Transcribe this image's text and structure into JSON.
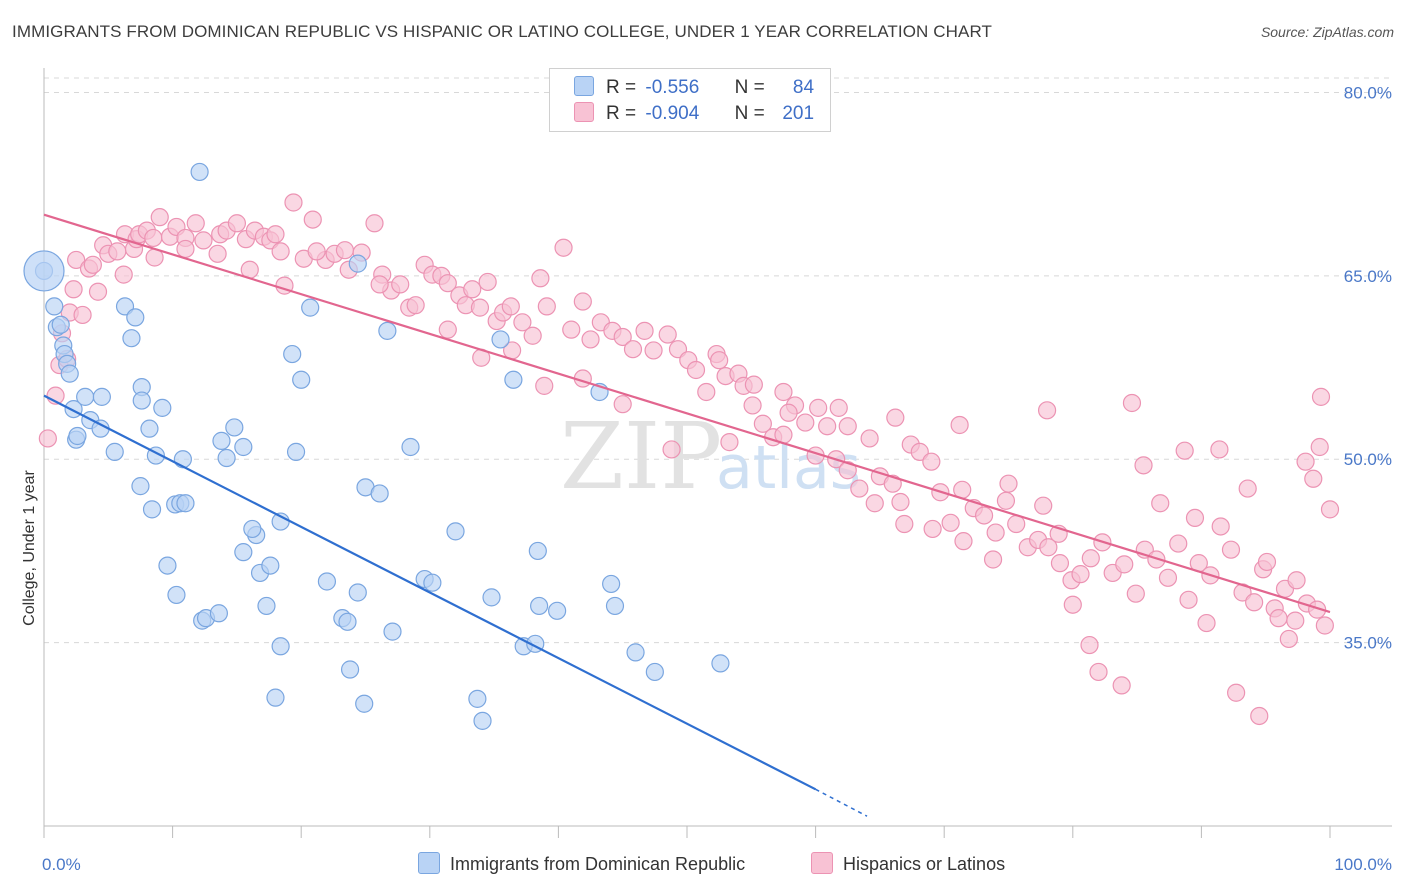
{
  "title": "IMMIGRANTS FROM DOMINICAN REPUBLIC VS HISPANIC OR LATINO COLLEGE, UNDER 1 YEAR CORRELATION CHART",
  "source": "Source: ZipAtlas.com",
  "watermark": {
    "zip": "ZIP",
    "atlas": "atlas"
  },
  "legend": {
    "r_label": "R =",
    "n_label": "N =",
    "blue": {
      "r": "-0.556",
      "n": "84"
    },
    "pink": {
      "r": "-0.904",
      "n": "201"
    }
  },
  "bottom_legend": {
    "blue": "Immigrants from Dominican Republic",
    "pink": "Hispanics or Latinos"
  },
  "colors": {
    "blue_fill": "#b9d3f5",
    "blue_stroke": "#7aa6e0",
    "blue_line": "#2f6fd0",
    "pink_fill": "#f8c2d4",
    "pink_stroke": "#ec93b3",
    "pink_line": "#e2668f",
    "axis_text": "#4a78c8",
    "grid": "#d8d8d8"
  },
  "chart_data": {
    "type": "scatter",
    "title": "IMMIGRANTS FROM DOMINICAN REPUBLIC VS HISPANIC OR LATINO COLLEGE, UNDER 1 YEAR CORRELATION CHART",
    "xlabel": "",
    "ylabel": "College, Under 1 year",
    "xlim": [
      0,
      100
    ],
    "ylim": [
      20,
      82
    ],
    "x_tick_labels": [
      "0.0%",
      "100.0%"
    ],
    "y_ticks": [
      35,
      50,
      65,
      80
    ],
    "y_tick_labels": [
      "35.0%",
      "50.0%",
      "65.0%",
      "80.0%"
    ],
    "grid": true,
    "legend_position": "top-center",
    "series": [
      {
        "name": "Immigrants from Dominican Republic",
        "color": "#b9d3f5",
        "r": -0.556,
        "n": 84,
        "trend": {
          "x": [
            0,
            60,
            64
          ],
          "y": [
            55.2,
            23.0,
            20.8
          ]
        },
        "points": [
          [
            0,
            65.4
          ],
          [
            0.8,
            62.5
          ],
          [
            1.0,
            60.8
          ],
          [
            1.3,
            61.0
          ],
          [
            1.5,
            59.3
          ],
          [
            1.6,
            58.6
          ],
          [
            1.8,
            57.8
          ],
          [
            2.0,
            57.0
          ],
          [
            2.3,
            54.1
          ],
          [
            2.5,
            51.6
          ],
          [
            2.6,
            51.9
          ],
          [
            3.2,
            55.1
          ],
          [
            3.6,
            53.2
          ],
          [
            4.5,
            55.1
          ],
          [
            4.4,
            52.5
          ],
          [
            5.5,
            50.6
          ],
          [
            6.3,
            62.5
          ],
          [
            6.8,
            59.9
          ],
          [
            7.1,
            61.6
          ],
          [
            7.6,
            55.9
          ],
          [
            7.6,
            54.8
          ],
          [
            8.2,
            52.5
          ],
          [
            7.5,
            47.8
          ],
          [
            8.4,
            45.9
          ],
          [
            8.7,
            50.3
          ],
          [
            9.2,
            54.2
          ],
          [
            10.2,
            46.3
          ],
          [
            10.6,
            46.4
          ],
          [
            10.8,
            50.0
          ],
          [
            11.0,
            46.4
          ],
          [
            12.1,
            73.5
          ],
          [
            9.6,
            41.3
          ],
          [
            10.3,
            38.9
          ],
          [
            12.3,
            36.8
          ],
          [
            12.6,
            37.0
          ],
          [
            13.6,
            37.4
          ],
          [
            13.8,
            51.5
          ],
          [
            14.8,
            52.6
          ],
          [
            14.2,
            50.1
          ],
          [
            15.5,
            51.0
          ],
          [
            15.5,
            42.4
          ],
          [
            16.5,
            43.8
          ],
          [
            16.2,
            44.3
          ],
          [
            17.3,
            38.0
          ],
          [
            16.8,
            40.7
          ],
          [
            17.6,
            41.3
          ],
          [
            18.4,
            44.9
          ],
          [
            18.0,
            30.5
          ],
          [
            18.4,
            34.7
          ],
          [
            19.6,
            50.6
          ],
          [
            19.3,
            58.6
          ],
          [
            20.0,
            56.5
          ],
          [
            20.7,
            62.4
          ],
          [
            22.0,
            40.0
          ],
          [
            23.2,
            37.0
          ],
          [
            23.6,
            36.7
          ],
          [
            23.8,
            32.8
          ],
          [
            24.4,
            39.1
          ],
          [
            24.9,
            30.0
          ],
          [
            25.0,
            47.7
          ],
          [
            26.1,
            47.2
          ],
          [
            26.7,
            60.5
          ],
          [
            27.1,
            35.9
          ],
          [
            28.5,
            51.0
          ],
          [
            29.6,
            40.2
          ],
          [
            30.2,
            39.9
          ],
          [
            32.0,
            44.1
          ],
          [
            33.7,
            30.4
          ],
          [
            34.1,
            28.6
          ],
          [
            34.8,
            38.7
          ],
          [
            35.5,
            59.8
          ],
          [
            36.5,
            56.5
          ],
          [
            37.3,
            34.7
          ],
          [
            38.2,
            34.9
          ],
          [
            38.4,
            42.5
          ],
          [
            38.5,
            38.0
          ],
          [
            39.9,
            37.6
          ],
          [
            43.2,
            55.5
          ],
          [
            44.1,
            39.8
          ],
          [
            44.4,
            38.0
          ],
          [
            46.0,
            34.2
          ],
          [
            47.5,
            32.6
          ],
          [
            52.6,
            33.3
          ],
          [
            24.4,
            66.0
          ]
        ]
      },
      {
        "name": "Hispanics or Latinos",
        "color": "#f8c2d4",
        "r": -0.904,
        "n": 201,
        "trend": {
          "x": [
            0,
            100
          ],
          "y": [
            70.0,
            37.5
          ]
        },
        "points": [
          [
            0.3,
            51.7
          ],
          [
            0.9,
            55.2
          ],
          [
            1.2,
            57.7
          ],
          [
            1.4,
            60.3
          ],
          [
            2.0,
            62.0
          ],
          [
            2.3,
            63.9
          ],
          [
            2.5,
            66.3
          ],
          [
            3.5,
            65.6
          ],
          [
            3.8,
            65.9
          ],
          [
            4.6,
            67.5
          ],
          [
            5.0,
            66.8
          ],
          [
            5.7,
            67.0
          ],
          [
            6.3,
            68.4
          ],
          [
            7.0,
            67.2
          ],
          [
            7.2,
            68.0
          ],
          [
            7.4,
            68.4
          ],
          [
            8.0,
            68.7
          ],
          [
            8.5,
            68.1
          ],
          [
            9.0,
            69.8
          ],
          [
            9.8,
            68.2
          ],
          [
            10.3,
            69.0
          ],
          [
            11.0,
            68.1
          ],
          [
            11.8,
            69.3
          ],
          [
            12.4,
            67.9
          ],
          [
            13.7,
            68.4
          ],
          [
            14.2,
            68.7
          ],
          [
            15.0,
            69.3
          ],
          [
            15.7,
            68.0
          ],
          [
            16.4,
            68.7
          ],
          [
            17.1,
            68.2
          ],
          [
            17.6,
            67.9
          ],
          [
            18.0,
            68.4
          ],
          [
            18.4,
            67.0
          ],
          [
            19.4,
            71.0
          ],
          [
            20.2,
            66.4
          ],
          [
            20.9,
            69.6
          ],
          [
            21.9,
            66.3
          ],
          [
            22.6,
            66.8
          ],
          [
            23.4,
            67.1
          ],
          [
            24.7,
            66.9
          ],
          [
            25.7,
            69.3
          ],
          [
            26.3,
            65.1
          ],
          [
            27.0,
            63.8
          ],
          [
            27.7,
            64.3
          ],
          [
            28.4,
            62.4
          ],
          [
            29.6,
            65.9
          ],
          [
            30.2,
            65.1
          ],
          [
            30.9,
            65.0
          ],
          [
            31.4,
            64.4
          ],
          [
            32.3,
            63.4
          ],
          [
            32.8,
            62.6
          ],
          [
            33.3,
            63.9
          ],
          [
            33.9,
            62.4
          ],
          [
            34.5,
            64.5
          ],
          [
            35.2,
            61.3
          ],
          [
            35.7,
            62.0
          ],
          [
            36.3,
            62.5
          ],
          [
            37.2,
            61.2
          ],
          [
            38.0,
            60.1
          ],
          [
            38.6,
            64.8
          ],
          [
            39.1,
            62.5
          ],
          [
            40.4,
            67.3
          ],
          [
            41.0,
            60.6
          ],
          [
            41.9,
            62.9
          ],
          [
            42.5,
            59.8
          ],
          [
            43.3,
            61.2
          ],
          [
            44.2,
            60.5
          ],
          [
            45.0,
            60.0
          ],
          [
            45.8,
            59.0
          ],
          [
            46.7,
            60.5
          ],
          [
            47.4,
            58.9
          ],
          [
            48.5,
            60.2
          ],
          [
            49.3,
            59.0
          ],
          [
            50.1,
            58.1
          ],
          [
            50.7,
            57.3
          ],
          [
            51.5,
            55.5
          ],
          [
            52.3,
            58.6
          ],
          [
            53.0,
            56.8
          ],
          [
            54.0,
            57.0
          ],
          [
            54.4,
            56.0
          ],
          [
            55.1,
            54.4
          ],
          [
            55.9,
            52.9
          ],
          [
            56.7,
            51.8
          ],
          [
            57.5,
            55.5
          ],
          [
            58.4,
            54.4
          ],
          [
            59.2,
            53.0
          ],
          [
            60.0,
            50.3
          ],
          [
            60.9,
            52.7
          ],
          [
            61.6,
            50.0
          ],
          [
            62.5,
            49.1
          ],
          [
            63.4,
            47.6
          ],
          [
            64.2,
            51.7
          ],
          [
            65.0,
            48.6
          ],
          [
            66.0,
            48.0
          ],
          [
            66.6,
            46.5
          ],
          [
            67.4,
            51.2
          ],
          [
            68.1,
            50.6
          ],
          [
            69.0,
            49.8
          ],
          [
            69.7,
            47.3
          ],
          [
            70.5,
            44.8
          ],
          [
            71.4,
            47.5
          ],
          [
            72.3,
            46.0
          ],
          [
            73.1,
            45.4
          ],
          [
            74.0,
            44.0
          ],
          [
            74.8,
            46.6
          ],
          [
            75.6,
            44.7
          ],
          [
            76.5,
            42.8
          ],
          [
            77.3,
            43.4
          ],
          [
            78.1,
            42.8
          ],
          [
            79.0,
            41.5
          ],
          [
            79.9,
            40.1
          ],
          [
            80.6,
            40.6
          ],
          [
            81.4,
            41.9
          ],
          [
            82.3,
            43.2
          ],
          [
            83.1,
            40.7
          ],
          [
            84.0,
            41.4
          ],
          [
            84.9,
            39.0
          ],
          [
            85.6,
            42.6
          ],
          [
            86.5,
            41.8
          ],
          [
            87.4,
            40.3
          ],
          [
            88.2,
            43.1
          ],
          [
            89.0,
            38.5
          ],
          [
            89.8,
            41.5
          ],
          [
            90.7,
            40.5
          ],
          [
            91.5,
            44.5
          ],
          [
            92.3,
            42.6
          ],
          [
            93.2,
            39.1
          ],
          [
            94.1,
            38.3
          ],
          [
            94.8,
            41.0
          ],
          [
            95.7,
            37.8
          ],
          [
            96.5,
            39.4
          ],
          [
            97.3,
            36.8
          ],
          [
            98.2,
            38.2
          ],
          [
            99.0,
            37.7
          ],
          [
            52.5,
            58.1
          ],
          [
            55.2,
            56.1
          ],
          [
            57.9,
            53.8
          ],
          [
            60.2,
            54.2
          ],
          [
            62.5,
            52.7
          ],
          [
            64.6,
            46.4
          ],
          [
            66.9,
            44.7
          ],
          [
            69.1,
            44.3
          ],
          [
            71.5,
            43.3
          ],
          [
            73.8,
            41.8
          ],
          [
            75.0,
            48.0
          ],
          [
            77.7,
            46.2
          ],
          [
            78.9,
            43.9
          ],
          [
            80.0,
            38.1
          ],
          [
            81.3,
            34.8
          ],
          [
            82.0,
            32.6
          ],
          [
            83.8,
            31.5
          ],
          [
            85.5,
            49.5
          ],
          [
            86.8,
            46.4
          ],
          [
            88.7,
            50.7
          ],
          [
            89.5,
            45.2
          ],
          [
            90.4,
            36.6
          ],
          [
            91.4,
            50.8
          ],
          [
            92.7,
            30.9
          ],
          [
            93.6,
            47.6
          ],
          [
            94.5,
            29.0
          ],
          [
            95.1,
            41.6
          ],
          [
            96.0,
            37.0
          ],
          [
            96.8,
            35.3
          ],
          [
            97.4,
            40.1
          ],
          [
            98.1,
            49.8
          ],
          [
            98.7,
            48.4
          ],
          [
            99.2,
            51.0
          ],
          [
            99.6,
            36.4
          ],
          [
            100.0,
            45.9
          ],
          [
            99.3,
            55.1
          ],
          [
            84.6,
            54.6
          ],
          [
            78.0,
            54.0
          ],
          [
            71.2,
            52.8
          ],
          [
            66.2,
            53.4
          ],
          [
            61.8,
            54.2
          ],
          [
            57.5,
            52.0
          ],
          [
            53.3,
            51.4
          ],
          [
            48.8,
            50.8
          ],
          [
            45.0,
            54.5
          ],
          [
            41.9,
            56.6
          ],
          [
            38.9,
            56.0
          ],
          [
            36.4,
            58.9
          ],
          [
            34.0,
            58.3
          ],
          [
            31.4,
            60.6
          ],
          [
            28.9,
            62.6
          ],
          [
            26.1,
            64.3
          ],
          [
            23.7,
            65.5
          ],
          [
            21.2,
            67.0
          ],
          [
            18.7,
            64.2
          ],
          [
            16.0,
            65.5
          ],
          [
            13.5,
            66.8
          ],
          [
            11.0,
            67.2
          ],
          [
            8.6,
            66.5
          ],
          [
            6.2,
            65.1
          ],
          [
            4.2,
            63.7
          ],
          [
            3.0,
            61.8
          ],
          [
            1.8,
            58.2
          ]
        ]
      }
    ]
  }
}
